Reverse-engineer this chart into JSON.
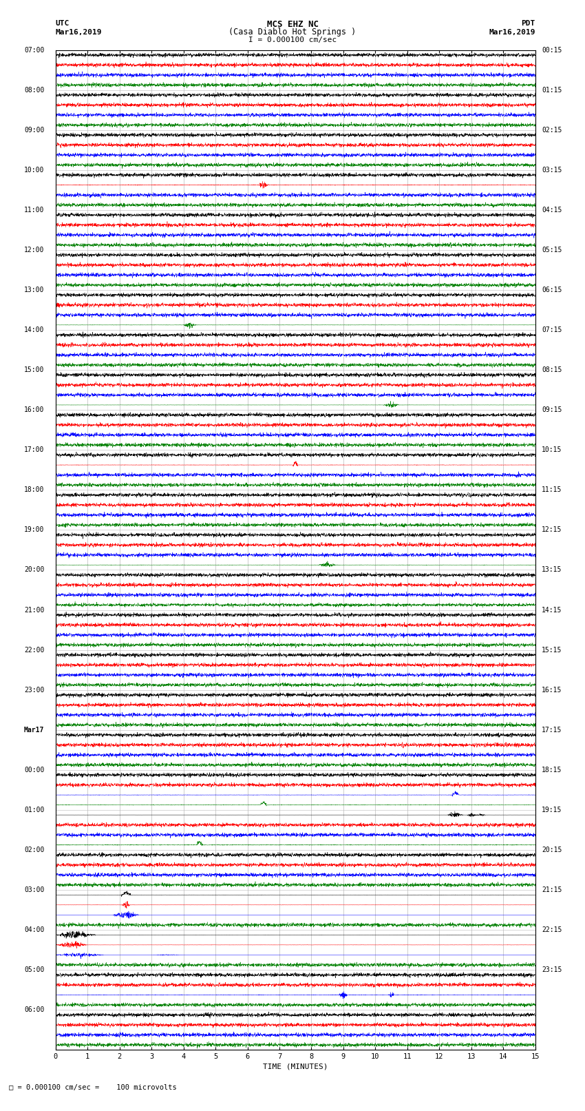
{
  "title_line1": "MCS EHZ NC",
  "title_line2": "(Casa Diablo Hot Springs )",
  "scale_label": "I = 0.000100 cm/sec",
  "left_header_top": "UTC",
  "left_header_bot": "Mar16,2019",
  "right_header_top": "PDT",
  "right_header_bot": "Mar16,2019",
  "bottom_label": "TIME (MINUTES)",
  "bottom_note": "= 0.000100 cm/sec =    100 microvolts",
  "utc_times": [
    "07:00",
    "08:00",
    "09:00",
    "10:00",
    "11:00",
    "12:00",
    "13:00",
    "14:00",
    "15:00",
    "16:00",
    "17:00",
    "18:00",
    "19:00",
    "20:00",
    "21:00",
    "22:00",
    "23:00",
    "Mar17",
    "00:00",
    "01:00",
    "02:00",
    "03:00",
    "04:00",
    "05:00",
    "06:00"
  ],
  "pdt_times": [
    "00:15",
    "01:15",
    "02:15",
    "03:15",
    "04:15",
    "05:15",
    "06:15",
    "07:15",
    "08:15",
    "09:15",
    "10:15",
    "11:15",
    "12:15",
    "13:15",
    "14:15",
    "15:15",
    "16:15",
    "17:15",
    "18:15",
    "19:15",
    "20:15",
    "21:15",
    "22:15",
    "23:15"
  ],
  "n_rows": 25,
  "n_cols": 4,
  "colors": [
    "black",
    "red",
    "blue",
    "green"
  ],
  "bg_color": "white",
  "grid_color": "#aaaaaa",
  "xmin": 0,
  "xmax": 15,
  "xticks": [
    0,
    1,
    2,
    3,
    4,
    5,
    6,
    7,
    8,
    9,
    10,
    11,
    12,
    13,
    14,
    15
  ],
  "figsize": [
    8.5,
    16.13
  ],
  "dpi": 100
}
